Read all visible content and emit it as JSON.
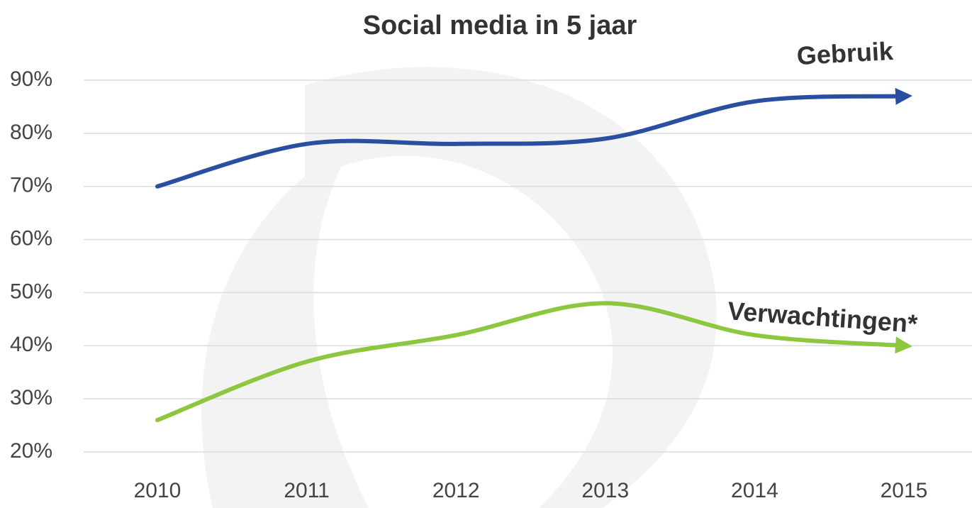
{
  "chart_data": {
    "type": "line",
    "title": "Social media in 5 jaar",
    "categories": [
      "2010",
      "2011",
      "2012",
      "2013",
      "2014",
      "2015"
    ],
    "series": [
      {
        "name": "Gebruik",
        "color": "#2a4fa0",
        "values": [
          70,
          78,
          78,
          79,
          86,
          87
        ]
      },
      {
        "name": "Verwachtingen*",
        "color": "#8dc63f",
        "values": [
          26,
          37,
          42,
          48,
          42,
          40
        ]
      }
    ],
    "ylim": [
      20,
      90
    ],
    "yticks": [
      {
        "value": 20,
        "label": "20%"
      },
      {
        "value": 30,
        "label": "30%"
      },
      {
        "value": 40,
        "label": "40%"
      },
      {
        "value": 50,
        "label": "50%"
      },
      {
        "value": 60,
        "label": "60%"
      },
      {
        "value": 70,
        "label": "70%"
      },
      {
        "value": 80,
        "label": "80%"
      },
      {
        "value": 90,
        "label": "90%"
      }
    ],
    "grid": true
  }
}
